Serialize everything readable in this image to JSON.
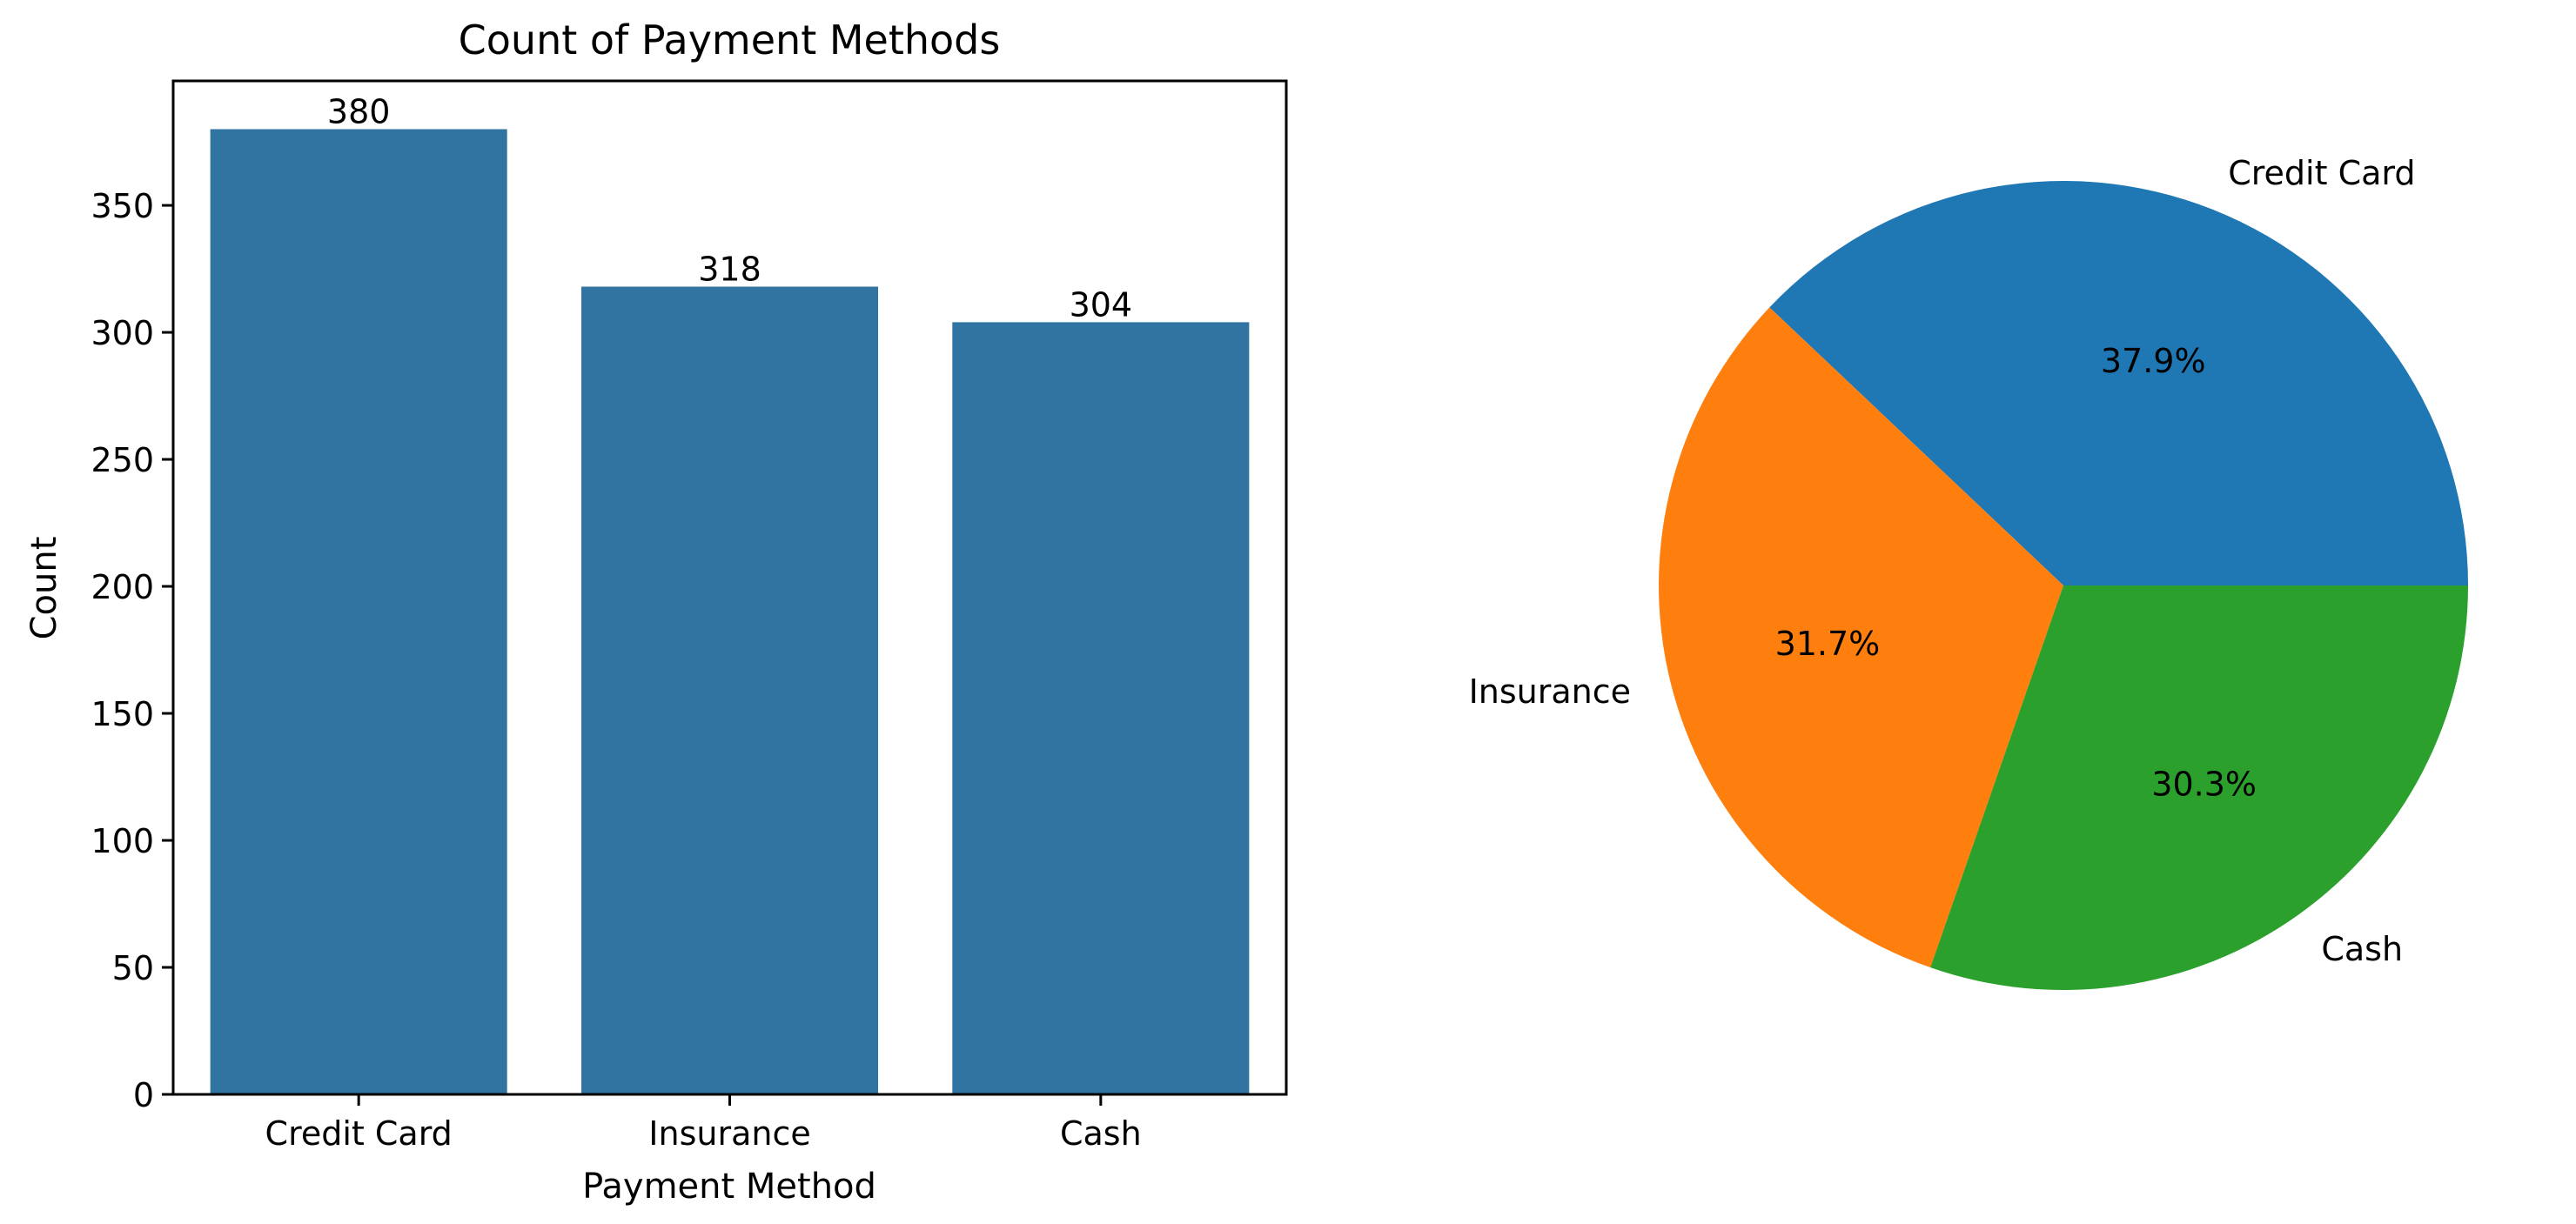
{
  "chart_data": [
    {
      "type": "bar",
      "title": "Count of Payment Methods",
      "xlabel": "Payment Method",
      "ylabel": "Count",
      "categories": [
        "Credit Card",
        "Insurance",
        "Cash"
      ],
      "values": [
        380,
        318,
        304
      ],
      "data_labels": [
        "380",
        "318",
        "304"
      ],
      "ylim": [
        0,
        399
      ],
      "yticks": [
        0,
        50,
        100,
        150,
        200,
        250,
        300,
        350
      ],
      "bar_color": "#3274a1",
      "grid": false
    },
    {
      "type": "pie",
      "labels": [
        "Credit Card",
        "Insurance",
        "Cash"
      ],
      "values": [
        37.9,
        31.7,
        30.3
      ],
      "pct_labels": [
        "37.9%",
        "31.7%",
        "30.3%"
      ],
      "colors": [
        "#1f77b4",
        "#ff7f0e",
        "#2ca02c"
      ],
      "startangle": 0,
      "direction": "counterclockwise"
    }
  ]
}
